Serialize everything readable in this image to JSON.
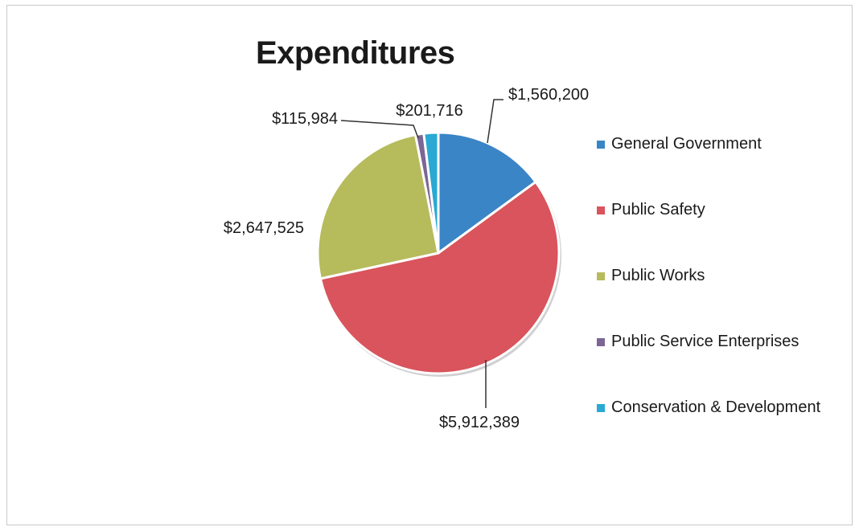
{
  "chart_data": {
    "type": "pie",
    "title": "Expenditures",
    "categories": [
      "General Government",
      "Public Safety",
      "Public Works",
      "Public Service Enterprises",
      "Conservation & Development"
    ],
    "values": [
      1560200,
      5912389,
      2647525,
      115984,
      201716
    ],
    "data_labels": [
      "$1,560,200",
      "$5,912,389",
      "$2,647,525",
      "$115,984",
      "$201,716"
    ],
    "colors": [
      "#3a85c6",
      "#d9545c",
      "#b6bb5c",
      "#7b6694",
      "#29a9d3"
    ],
    "legend_position": "right",
    "start_angle": "12 o'clock, clockwise"
  }
}
